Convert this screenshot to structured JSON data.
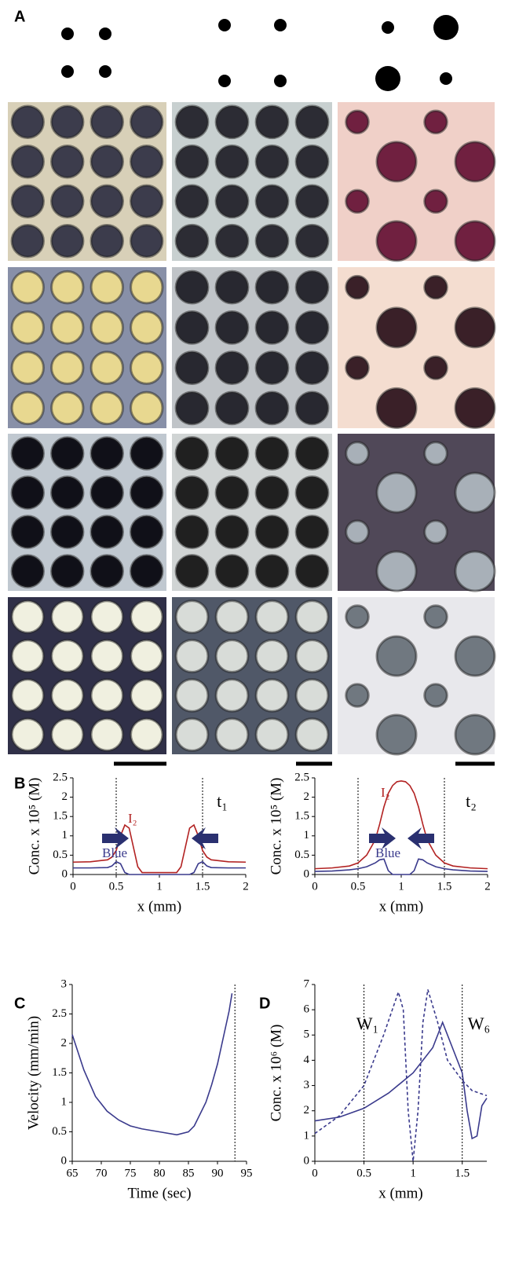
{
  "panel_labels": [
    "A",
    "B",
    "C",
    "D"
  ],
  "chart_data": [
    {
      "type": "line",
      "xlabel": "x (mm)",
      "ylabel": "Conc. x 10⁵ (M)",
      "xlim": [
        0,
        2
      ],
      "xticks": [
        0,
        0.5,
        1,
        1.5,
        2
      ],
      "ylim": [
        0,
        2.5
      ],
      "yticks": [
        0,
        0.5,
        1,
        1.5,
        2,
        2.5
      ],
      "vlines": [
        0.5,
        1.5
      ],
      "annotations": [
        "t₁"
      ],
      "x": [
        0,
        0.2,
        0.4,
        0.45,
        0.5,
        0.55,
        0.6,
        0.65,
        0.7,
        0.75,
        0.8,
        1.0,
        1.2,
        1.25,
        1.3,
        1.35,
        1.4,
        1.45,
        1.5,
        1.55,
        1.6,
        1.8,
        2.0
      ],
      "series": [
        {
          "name": "I₂",
          "color": "#b22222",
          "values": [
            0.32,
            0.33,
            0.38,
            0.45,
            0.62,
            1.0,
            1.28,
            1.2,
            0.7,
            0.2,
            0.05,
            0.05,
            0.05,
            0.2,
            0.7,
            1.2,
            1.28,
            1.0,
            0.62,
            0.45,
            0.38,
            0.33,
            0.32
          ]
        },
        {
          "name": "Blue",
          "color": "#3a3a8c",
          "values": [
            0.17,
            0.17,
            0.18,
            0.22,
            0.33,
            0.28,
            0.05,
            0,
            0,
            0,
            0,
            0,
            0,
            0,
            0,
            0,
            0.05,
            0.28,
            0.33,
            0.22,
            0.18,
            0.17,
            0.17
          ]
        }
      ]
    },
    {
      "type": "line",
      "xlabel": "x (mm)",
      "ylabel": "Conc. x 10⁵ (M)",
      "xlim": [
        0,
        2
      ],
      "xticks": [
        0,
        0.5,
        1,
        1.5,
        2
      ],
      "ylim": [
        0,
        2.5
      ],
      "yticks": [
        0,
        0.5,
        1,
        1.5,
        2,
        2.5
      ],
      "vlines": [
        0.5,
        1.5
      ],
      "annotations": [
        "t₂"
      ],
      "x": [
        0,
        0.2,
        0.4,
        0.5,
        0.6,
        0.7,
        0.75,
        0.8,
        0.85,
        0.9,
        0.95,
        1.0,
        1.05,
        1.1,
        1.15,
        1.2,
        1.25,
        1.3,
        1.4,
        1.5,
        1.6,
        1.8,
        2.0
      ],
      "series": [
        {
          "name": "I₂",
          "color": "#b22222",
          "values": [
            0.15,
            0.17,
            0.22,
            0.3,
            0.5,
            0.9,
            1.3,
            1.75,
            2.1,
            2.3,
            2.4,
            2.42,
            2.4,
            2.3,
            2.1,
            1.75,
            1.3,
            0.9,
            0.5,
            0.3,
            0.22,
            0.17,
            0.15
          ]
        },
        {
          "name": "Blue",
          "color": "#3a3a8c",
          "values": [
            0.08,
            0.09,
            0.12,
            0.15,
            0.2,
            0.3,
            0.38,
            0.4,
            0.1,
            0,
            0,
            0,
            0,
            0,
            0.1,
            0.4,
            0.38,
            0.3,
            0.2,
            0.15,
            0.12,
            0.09,
            0.08
          ]
        }
      ]
    },
    {
      "type": "line",
      "xlabel": "Time (sec)",
      "ylabel": "Velocity (mm/min)",
      "xlim": [
        65,
        95
      ],
      "xticks": [
        65,
        70,
        75,
        80,
        85,
        90,
        95
      ],
      "ylim": [
        0,
        3
      ],
      "yticks": [
        0,
        0.5,
        1,
        1.5,
        2,
        2.5,
        3
      ],
      "vlines": [
        93
      ],
      "annotations": [],
      "x": [
        65,
        67,
        69,
        71,
        73,
        75,
        77,
        80,
        83,
        85,
        86,
        87,
        88,
        89,
        90,
        91,
        92,
        92.5
      ],
      "series": [
        {
          "color": "#3a3a8c",
          "values": [
            2.15,
            1.55,
            1.1,
            0.85,
            0.7,
            0.6,
            0.55,
            0.5,
            0.45,
            0.5,
            0.6,
            0.8,
            1.0,
            1.3,
            1.65,
            2.1,
            2.55,
            2.85
          ]
        }
      ]
    },
    {
      "type": "line",
      "xlabel": "x (mm)",
      "ylabel": "Conc. x 10⁶ (M)",
      "xlim": [
        0,
        1.75
      ],
      "xticks": [
        0,
        0.5,
        1,
        1.5
      ],
      "ylim": [
        0,
        7
      ],
      "yticks": [
        0,
        1,
        2,
        3,
        4,
        5,
        6,
        7
      ],
      "vlines": [
        0.5,
        1.5
      ],
      "annotations": [
        "W₁",
        "W₆"
      ],
      "series": [
        {
          "color": "#3a3a8c",
          "dashed": false,
          "x": [
            0,
            0.25,
            0.5,
            0.75,
            1.0,
            1.2,
            1.3,
            1.4,
            1.5,
            1.55,
            1.6,
            1.65,
            1.7,
            1.75
          ],
          "values": [
            1.6,
            1.75,
            2.1,
            2.7,
            3.5,
            4.5,
            5.5,
            4.5,
            3.5,
            2.0,
            0.9,
            1.0,
            2.2,
            2.5
          ]
        },
        {
          "color": "#3a3a8c",
          "dashed": true,
          "x": [
            0,
            0.25,
            0.5,
            0.7,
            0.85,
            0.9,
            0.95,
            1.0,
            1.05,
            1.1,
            1.15,
            1.25,
            1.35,
            1.5,
            1.6,
            1.75
          ],
          "values": [
            1.1,
            1.8,
            3.0,
            5.0,
            6.7,
            6.0,
            2.0,
            0,
            2.0,
            5.5,
            6.8,
            5.5,
            4.0,
            3.2,
            2.8,
            2.6
          ]
        }
      ]
    }
  ]
}
